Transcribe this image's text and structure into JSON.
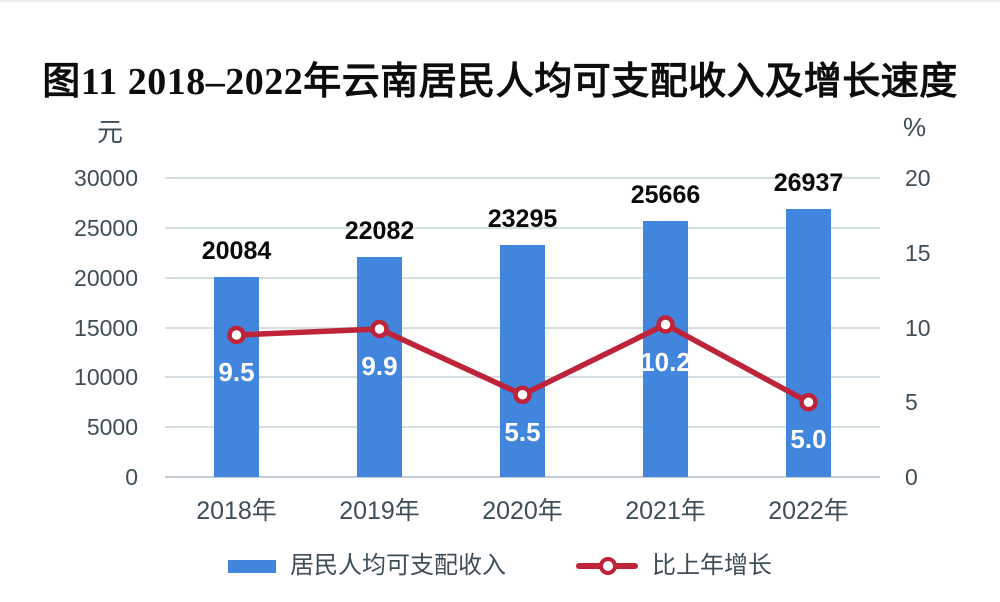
{
  "title": "图11  2018–2022年云南居民人均可支配收入及增长速度",
  "left_axis": {
    "unit": "元",
    "ticks": [
      30000,
      25000,
      20000,
      15000,
      10000,
      5000,
      0
    ],
    "max": 30000
  },
  "right_axis": {
    "unit": "%",
    "ticks": [
      20,
      15,
      10,
      5,
      0
    ],
    "max": 20
  },
  "chart_data": {
    "type": "bar",
    "subtype": "bar+line combo",
    "categories": [
      "2018年",
      "2019年",
      "2020年",
      "2021年",
      "2022年"
    ],
    "series": [
      {
        "name": "居民人均可支配收入",
        "type": "bar",
        "axis": "left",
        "values": [
          20084,
          22082,
          23295,
          25666,
          26937
        ]
      },
      {
        "name": "比上年增长",
        "type": "line",
        "axis": "right",
        "values": [
          9.5,
          9.9,
          5.5,
          10.2,
          5.0
        ]
      }
    ],
    "ylim_left": [
      0,
      30000
    ],
    "ylim_right": [
      0,
      20
    ],
    "grid": true,
    "legend_position": "bottom",
    "title": "图11  2018–2022年云南居民人均可支配收入及增长速度",
    "xlabel": "",
    "ylabel_left": "元",
    "ylabel_right": "%"
  },
  "legend": {
    "bar_label": "居民人均可支配收入",
    "line_label": "比上年增长"
  },
  "colors": {
    "bar": "#4285dc",
    "line": "#be2339",
    "marker_fill": "#ffffff",
    "axis_text": "#3e4e58",
    "gridline": "#d4dee3",
    "title_text": "#0d0d0d",
    "bar_value_label": "#0a0a0a",
    "rate_label": "#ffffff"
  }
}
